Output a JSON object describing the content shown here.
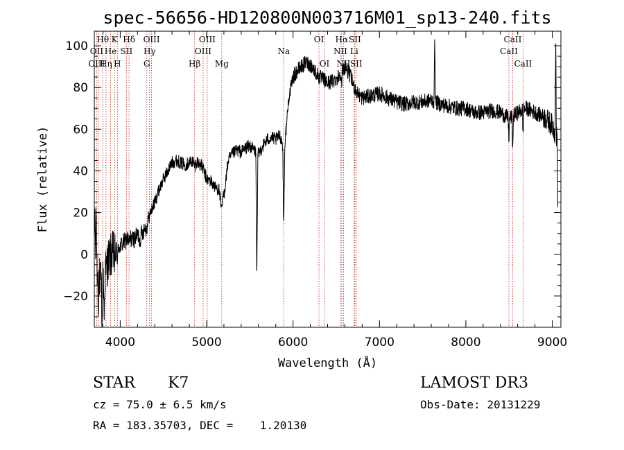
{
  "chart_data": {
    "type": "line",
    "title": "spec-56656-HD120800N003716M01_sp13-240.fits",
    "xlabel": "Wavelength (Å)",
    "ylabel": "Flux (relative)",
    "xlim": [
      3700,
      9100
    ],
    "ylim": [
      -35,
      107
    ],
    "xticks": [
      4000,
      5000,
      6000,
      7000,
      8000,
      9000
    ],
    "yticks": [
      -20,
      0,
      20,
      40,
      60,
      80,
      100
    ],
    "series": [
      {
        "name": "flux",
        "anchors": [
          [
            3700,
            0
          ],
          [
            3740,
            -8
          ],
          [
            3780,
            -15
          ],
          [
            3820,
            -10
          ],
          [
            3860,
            -3
          ],
          [
            3900,
            0
          ],
          [
            3950,
            2
          ],
          [
            4000,
            4
          ],
          [
            4050,
            6
          ],
          [
            4100,
            8
          ],
          [
            4150,
            7
          ],
          [
            4200,
            9
          ],
          [
            4250,
            10
          ],
          [
            4300,
            14
          ],
          [
            4350,
            20
          ],
          [
            4400,
            25
          ],
          [
            4450,
            31
          ],
          [
            4500,
            36
          ],
          [
            4550,
            40
          ],
          [
            4600,
            44
          ],
          [
            4650,
            45
          ],
          [
            4700,
            44
          ],
          [
            4750,
            43
          ],
          [
            4800,
            44
          ],
          [
            4850,
            45
          ],
          [
            4900,
            44
          ],
          [
            4950,
            42
          ],
          [
            5000,
            36
          ],
          [
            5050,
            35
          ],
          [
            5100,
            32
          ],
          [
            5150,
            31
          ],
          [
            5200,
            28
          ],
          [
            5250,
            45
          ],
          [
            5300,
            48
          ],
          [
            5350,
            50
          ],
          [
            5400,
            49
          ],
          [
            5450,
            51
          ],
          [
            5500,
            52
          ],
          [
            5550,
            50
          ],
          [
            5600,
            48
          ],
          [
            5650,
            52
          ],
          [
            5700,
            55
          ],
          [
            5750,
            56
          ],
          [
            5800,
            55
          ],
          [
            5850,
            57
          ],
          [
            5900,
            50
          ],
          [
            5950,
            75
          ],
          [
            6000,
            85
          ],
          [
            6050,
            88
          ],
          [
            6100,
            90
          ],
          [
            6150,
            92
          ],
          [
            6200,
            91
          ],
          [
            6250,
            88
          ],
          [
            6300,
            85
          ],
          [
            6350,
            84
          ],
          [
            6400,
            82
          ],
          [
            6450,
            83
          ],
          [
            6500,
            84
          ],
          [
            6550,
            87
          ],
          [
            6600,
            90
          ],
          [
            6650,
            87
          ],
          [
            6700,
            81
          ],
          [
            6750,
            77
          ],
          [
            6800,
            75
          ],
          [
            6900,
            76
          ],
          [
            7000,
            77
          ],
          [
            7100,
            75
          ],
          [
            7200,
            73
          ],
          [
            7300,
            72
          ],
          [
            7400,
            73
          ],
          [
            7500,
            73
          ],
          [
            7600,
            74
          ],
          [
            7700,
            72
          ],
          [
            7800,
            71
          ],
          [
            7900,
            70
          ],
          [
            8000,
            70
          ],
          [
            8100,
            68
          ],
          [
            8200,
            68
          ],
          [
            8300,
            69
          ],
          [
            8400,
            68
          ],
          [
            8500,
            65
          ],
          [
            8600,
            68
          ],
          [
            8700,
            70
          ],
          [
            8800,
            68
          ],
          [
            8900,
            66
          ],
          [
            9000,
            62
          ],
          [
            9060,
            55
          ]
        ],
        "features": [
          [
            3705,
            22,
            10
          ],
          [
            3722,
            30,
            8
          ],
          [
            3745,
            -14,
            8
          ],
          [
            3790,
            -26,
            8
          ],
          [
            3815,
            -20,
            8
          ],
          [
            3968,
            -5,
            12
          ],
          [
            3934,
            -4,
            12
          ],
          [
            4102,
            -3,
            15
          ],
          [
            4227,
            -4,
            12
          ],
          [
            4308,
            -3,
            15
          ],
          [
            4861,
            -3,
            20
          ],
          [
            5170,
            -9,
            25
          ],
          [
            5581,
            -62,
            12
          ],
          [
            5892,
            -38,
            12
          ],
          [
            6563,
            -8,
            10
          ],
          [
            7640,
            34,
            8
          ],
          [
            8498,
            -10,
            8
          ],
          [
            8542,
            -18,
            8
          ],
          [
            8662,
            -14,
            8
          ],
          [
            9040,
            48,
            8
          ],
          [
            9065,
            -32,
            8
          ]
        ]
      }
    ],
    "line_marks": [
      {
        "label": "Hθ",
        "x": 3798,
        "row": 0
      },
      {
        "label": "K",
        "x": 3934,
        "row": 0
      },
      {
        "label": "Hδ",
        "x": 4102,
        "row": 0
      },
      {
        "label": "OIII",
        "x": 4363,
        "row": 0
      },
      {
        "label": "OIII",
        "x": 5007,
        "row": 0
      },
      {
        "label": "OI",
        "x": 6300,
        "row": 0
      },
      {
        "label": "Hα",
        "x": 6563,
        "row": 0
      },
      {
        "label": "SII",
        "x": 6716,
        "row": 0
      },
      {
        "label": "CaII",
        "x": 8542,
        "row": 0
      },
      {
        "label": "OII",
        "x": 3727,
        "row": 1
      },
      {
        "label": "He",
        "x": 3889,
        "row": 1
      },
      {
        "label": "SII",
        "x": 4072,
        "row": 1
      },
      {
        "label": "Hγ",
        "x": 4340,
        "row": 1
      },
      {
        "label": "OIII",
        "x": 4959,
        "row": 1
      },
      {
        "label": "Na",
        "x": 5893,
        "row": 1
      },
      {
        "label": "NII",
        "x": 6548,
        "row": 1
      },
      {
        "label": "Li",
        "x": 6708,
        "row": 1
      },
      {
        "label": "CaII",
        "x": 8498,
        "row": 1
      },
      {
        "label": "OIII",
        "x": 3727,
        "row": 2
      },
      {
        "label": "Hη",
        "x": 3835,
        "row": 2
      },
      {
        "label": "H",
        "x": 3968,
        "row": 2
      },
      {
        "label": "G",
        "x": 4308,
        "row": 2
      },
      {
        "label": "Hβ",
        "x": 4861,
        "row": 2
      },
      {
        "label": "Mg",
        "x": 5175,
        "row": 2
      },
      {
        "label": "OI",
        "x": 6364,
        "row": 2
      },
      {
        "label": "NII",
        "x": 6584,
        "row": 2
      },
      {
        "label": "SII",
        "x": 6731,
        "row": 2
      },
      {
        "label": "CaII",
        "x": 8662,
        "row": 2
      }
    ],
    "line_positions": [
      3727,
      3750,
      3798,
      3835,
      3889,
      3934,
      3968,
      4072,
      4102,
      4308,
      4340,
      4363,
      4861,
      4959,
      5007,
      5175,
      5893,
      6300,
      6364,
      6548,
      6563,
      6584,
      6708,
      6716,
      6731,
      8498,
      8542,
      8662
    ]
  },
  "info": {
    "class": "STAR",
    "subclass": "K7",
    "survey": "LAMOST DR3",
    "cz": "cz = 75.0 ± 6.5 km/s",
    "obs_date": "Obs-Date: 20131229",
    "radec": "RA = 183.35703, DEC =    1.20130"
  }
}
